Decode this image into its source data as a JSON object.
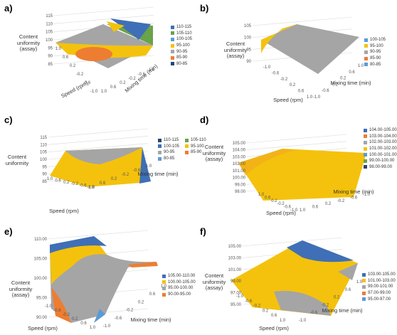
{
  "colors": {
    "blue": "#3f6fb6",
    "green": "#6aa34a",
    "yellow": "#f4c20d",
    "gray": "#a5a5a5",
    "orange": "#ed7d31",
    "lightblue": "#5b9bd5",
    "navy": "#264478"
  },
  "chart_data": [
    {
      "type": "surface",
      "panel": "a)",
      "zlabel": "Content uniformity (assay)",
      "xlabel": "Speed (rpm)",
      "ylabel": "Mixing time (min)",
      "z_ticks": [
        "115",
        "110",
        "105",
        "100",
        "95",
        "90",
        "85"
      ],
      "x_ticks": [
        "1.0",
        "0.6",
        "0.2",
        "-0.2",
        "-0.6",
        "-1.0"
      ],
      "y_ticks": [
        "1.0",
        "0.6",
        "0.2",
        "-0.2",
        "-0.6",
        "-1.0"
      ],
      "legend": [
        {
          "label": "110-115",
          "color": "#3f6fb6"
        },
        {
          "label": "105-110",
          "color": "#6aa34a"
        },
        {
          "label": "100-105",
          "color": "#5b9bd5"
        },
        {
          "label": "95-100",
          "color": "#f4c20d"
        },
        {
          "label": "90-95",
          "color": "#a5a5a5"
        },
        {
          "label": "85-90",
          "color": "#ed7d31"
        },
        {
          "label": "80-85",
          "color": "#264478"
        }
      ]
    },
    {
      "type": "surface",
      "panel": "b)",
      "zlabel": "Content uniformity (assay)",
      "xlabel": "Speed (rpm)",
      "ylabel": "Mixing time (min)",
      "z_ticks": [
        "105",
        "100",
        "95",
        "90"
      ],
      "x_ticks": [
        "-1.0",
        "-0.6",
        "-0.2",
        "0.2",
        "0.6",
        "1.0"
      ],
      "y_ticks": [
        "-1.0",
        "-0.6",
        "-0.2",
        "0.2",
        "0.6",
        "1.0"
      ],
      "legend": [
        {
          "label": "100-105",
          "color": "#5b9bd5"
        },
        {
          "label": "95-100",
          "color": "#f4c20d"
        },
        {
          "label": "90-95",
          "color": "#a5a5a5"
        },
        {
          "label": "85-90",
          "color": "#ed7d31"
        },
        {
          "label": "80-85",
          "color": "#5b9bd5"
        }
      ]
    },
    {
      "type": "surface",
      "panel": "c)",
      "zlabel": "Content uniformity",
      "xlabel": "Speed (rpm)",
      "ylabel": "Mixing time (min)",
      "z_ticks": [
        "115",
        "110",
        "105",
        "100",
        "95",
        "90",
        "85"
      ],
      "x_ticks": [
        "1.0",
        "0.6",
        "0.2",
        "-0.2",
        "-0.6",
        "-1.0"
      ],
      "y_ticks": [
        "1.0",
        "0.6",
        "0.2",
        "-0.2",
        "-0.6",
        "-1.0"
      ],
      "legend": [
        {
          "label": "110-115",
          "color": "#264478"
        },
        {
          "label": "105-110",
          "color": "#6aa34a"
        },
        {
          "label": "100-105",
          "color": "#3f6fb6"
        },
        {
          "label": "95-100",
          "color": "#f4c20d"
        },
        {
          "label": "90-95",
          "color": "#a5a5a5"
        },
        {
          "label": "85-90",
          "color": "#ed7d31"
        },
        {
          "label": "80-85",
          "color": "#5b9bd5"
        }
      ]
    },
    {
      "type": "surface",
      "panel": "d)",
      "zlabel": "Content uniformity (assay)",
      "xlabel": "Speed (rpm)",
      "ylabel": "Mixing time (min)",
      "z_ticks": [
        "105.00",
        "104.00",
        "103.00",
        "102.00",
        "101.00",
        "100.00",
        "99.00",
        "98.00"
      ],
      "x_ticks": [
        "1.0",
        "0.6",
        "0.2",
        "-0.2",
        "-0.6",
        "-1.0"
      ],
      "y_ticks": [
        "1.0",
        "0.6",
        "0.2",
        "-0.2",
        "-0.6",
        "-1.0"
      ],
      "legend": [
        {
          "label": "104.00-105.00",
          "color": "#3f6fb6"
        },
        {
          "label": "103.00-104.00",
          "color": "#ed7d31"
        },
        {
          "label": "102.00-103.00",
          "color": "#a5a5a5"
        },
        {
          "label": "101.00-102.00",
          "color": "#f4c20d"
        },
        {
          "label": "100.00-101.00",
          "color": "#5b9bd5"
        },
        {
          "label": "99.00-100.00",
          "color": "#6aa34a"
        },
        {
          "label": "98.00-99.00",
          "color": "#264478"
        }
      ]
    },
    {
      "type": "surface",
      "panel": "e)",
      "zlabel": "Content uniformity (assay)",
      "xlabel": "Speed (rpm)",
      "ylabel": "Mixing time (min)",
      "z_ticks": [
        "110.00",
        "105.00",
        "100.00",
        "95.00",
        "90.00"
      ],
      "x_ticks": [
        "-1.0",
        "-0.6",
        "-0.2",
        "0.2",
        "0.6",
        "1.0"
      ],
      "y_ticks": [
        "-1.0",
        "-0.6",
        "-0.2",
        "0.2",
        "0.6",
        "1.0"
      ],
      "legend": [
        {
          "label": "105.00-110.00",
          "color": "#3f6fb6"
        },
        {
          "label": "100.00-105.00",
          "color": "#f4c20d"
        },
        {
          "label": "95.00-100.00",
          "color": "#a5a5a5"
        },
        {
          "label": "90.00-95.00",
          "color": "#ed7d31"
        }
      ]
    },
    {
      "type": "surface",
      "panel": "f)",
      "zlabel": "Content uniformity (assay)",
      "xlabel": "Speed (rpm)",
      "ylabel": "Mixing time (min)",
      "z_ticks": [
        "105.00",
        "103.00",
        "101.00",
        "99.00",
        "97.00",
        "95.00"
      ],
      "x_ticks": [
        "-1.0",
        "-0.6",
        "-0.2",
        "0.2",
        "0.6",
        "1.0"
      ],
      "y_ticks": [
        "-1.0",
        "-0.6",
        "-0.2",
        "0.2",
        "0.6",
        "1.0"
      ],
      "legend": [
        {
          "label": "103.00-105.00",
          "color": "#3f6fb6"
        },
        {
          "label": "101.00-103.00",
          "color": "#f4c20d"
        },
        {
          "label": "99.00-101.00",
          "color": "#a5a5a5"
        },
        {
          "label": "97.00-99.00",
          "color": "#ed7d31"
        },
        {
          "label": "95.00-97.00",
          "color": "#5b9bd5"
        }
      ]
    }
  ]
}
